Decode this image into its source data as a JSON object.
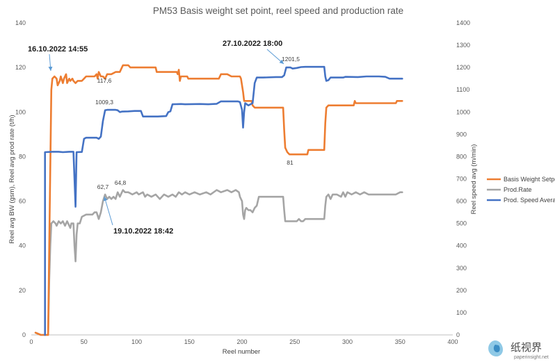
{
  "chart_data": {
    "type": "line",
    "title": "PM53 Basis weight set point, reel speed and production rate",
    "xlabel": "Reel number",
    "ylabel_left": "Reel avg BW (gsm), Reel avg prod rate (t/h)",
    "ylabel_right": "Reel speed avg (m/min)",
    "xlim": [
      0,
      400
    ],
    "xticks": [
      0,
      50,
      100,
      150,
      200,
      250,
      300,
      350,
      400
    ],
    "ylim_left": [
      0,
      140
    ],
    "yticks_left": [
      0,
      20,
      40,
      60,
      80,
      100,
      120,
      140
    ],
    "ylim_right": [
      0,
      1400
    ],
    "yticks_right": [
      0,
      100,
      200,
      300,
      400,
      500,
      600,
      700,
      800,
      900,
      1000,
      1100,
      1200,
      1300,
      1400
    ],
    "grid": false,
    "legend_position": "right",
    "series": [
      {
        "name": "Basis Weight Setpoint",
        "color": "#ED7D31",
        "axis": "left",
        "points": [
          [
            4,
            1
          ],
          [
            9,
            0
          ],
          [
            14,
            0
          ],
          [
            16,
            0
          ],
          [
            17,
            40
          ],
          [
            18,
            75
          ],
          [
            19,
            110
          ],
          [
            20,
            115
          ],
          [
            22,
            116
          ],
          [
            24,
            115
          ],
          [
            25,
            112
          ],
          [
            27,
            114
          ],
          [
            28,
            116
          ],
          [
            30,
            113
          ],
          [
            31,
            115
          ],
          [
            33,
            117
          ],
          [
            34,
            113
          ],
          [
            36,
            115
          ],
          [
            37,
            114
          ],
          [
            39,
            115
          ],
          [
            40,
            114
          ],
          [
            42,
            113
          ],
          [
            44,
            114
          ],
          [
            46,
            114
          ],
          [
            48,
            114
          ],
          [
            50,
            115
          ],
          [
            52,
            116
          ],
          [
            56,
            116
          ],
          [
            60,
            116
          ],
          [
            62,
            117
          ],
          [
            63,
            115
          ],
          [
            64,
            118
          ],
          [
            66,
            116
          ],
          [
            68,
            116
          ],
          [
            70,
            115
          ],
          [
            72,
            117
          ],
          [
            76,
            117
          ],
          [
            80,
            118
          ],
          [
            84,
            118
          ],
          [
            86,
            120
          ],
          [
            87,
            121
          ],
          [
            92,
            121
          ],
          [
            94,
            120
          ],
          [
            100,
            120
          ],
          [
            110,
            120
          ],
          [
            118,
            120
          ],
          [
            119,
            118
          ],
          [
            132,
            118
          ],
          [
            138,
            118
          ],
          [
            139,
            117
          ],
          [
            140,
            119
          ],
          [
            141,
            114
          ],
          [
            142,
            116
          ],
          [
            148,
            116
          ],
          [
            149,
            115
          ],
          [
            160,
            115
          ],
          [
            178,
            115
          ],
          [
            180,
            117
          ],
          [
            186,
            117
          ],
          [
            190,
            116
          ],
          [
            198,
            116
          ],
          [
            199,
            115
          ],
          [
            200,
            112
          ],
          [
            201,
            109
          ],
          [
            202,
            105
          ],
          [
            206,
            105
          ],
          [
            209,
            105
          ],
          [
            210,
            103
          ],
          [
            212,
            102
          ],
          [
            214,
            102
          ],
          [
            230,
            102
          ],
          [
            239,
            102
          ],
          [
            240,
            92
          ],
          [
            241,
            84
          ],
          [
            243,
            82
          ],
          [
            245,
            81
          ],
          [
            262,
            81
          ],
          [
            263,
            83
          ],
          [
            278,
            83
          ],
          [
            279,
            95
          ],
          [
            280,
            102
          ],
          [
            282,
            103
          ],
          [
            296,
            103
          ],
          [
            298,
            103
          ],
          [
            300,
            103
          ],
          [
            306,
            103
          ],
          [
            307,
            105
          ],
          [
            308,
            104
          ],
          [
            340,
            104
          ],
          [
            346,
            104
          ],
          [
            347,
            105
          ],
          [
            352,
            105
          ]
        ]
      },
      {
        "name": "Prod.Rate",
        "color": "#A5A5A5",
        "axis": "left",
        "points": [
          [
            4,
            1
          ],
          [
            9,
            0
          ],
          [
            14,
            0
          ],
          [
            16,
            0
          ],
          [
            17,
            25
          ],
          [
            18,
            40
          ],
          [
            19,
            50
          ],
          [
            21,
            51
          ],
          [
            23,
            50
          ],
          [
            24,
            49
          ],
          [
            26,
            51
          ],
          [
            28,
            50
          ],
          [
            30,
            51
          ],
          [
            32,
            49
          ],
          [
            34,
            51
          ],
          [
            35,
            50
          ],
          [
            37,
            48
          ],
          [
            38,
            50
          ],
          [
            40,
            50
          ],
          [
            41,
            40
          ],
          [
            42,
            33
          ],
          [
            43,
            45
          ],
          [
            44,
            50
          ],
          [
            46,
            50
          ],
          [
            48,
            53
          ],
          [
            52,
            54
          ],
          [
            58,
            54
          ],
          [
            60,
            55
          ],
          [
            62,
            55
          ],
          [
            64,
            52
          ],
          [
            66,
            55
          ],
          [
            68,
            60
          ],
          [
            70,
            63
          ],
          [
            72,
            61
          ],
          [
            74,
            62
          ],
          [
            76,
            61
          ],
          [
            78,
            62
          ],
          [
            80,
            61
          ],
          [
            82,
            64
          ],
          [
            84,
            62
          ],
          [
            86,
            64
          ],
          [
            87,
            65
          ],
          [
            89,
            64
          ],
          [
            92,
            64
          ],
          [
            96,
            63
          ],
          [
            100,
            64
          ],
          [
            102,
            63
          ],
          [
            106,
            64
          ],
          [
            108,
            62
          ],
          [
            110,
            63
          ],
          [
            114,
            62
          ],
          [
            118,
            63
          ],
          [
            122,
            61
          ],
          [
            126,
            63
          ],
          [
            130,
            62
          ],
          [
            134,
            63
          ],
          [
            137,
            62
          ],
          [
            140,
            64
          ],
          [
            143,
            63
          ],
          [
            146,
            64
          ],
          [
            150,
            63
          ],
          [
            155,
            64
          ],
          [
            160,
            63
          ],
          [
            166,
            64
          ],
          [
            170,
            63
          ],
          [
            176,
            65
          ],
          [
            180,
            64
          ],
          [
            186,
            65
          ],
          [
            190,
            64
          ],
          [
            194,
            65
          ],
          [
            197,
            64
          ],
          [
            198,
            62
          ],
          [
            200,
            60
          ],
          [
            201,
            54
          ],
          [
            202,
            52
          ],
          [
            203,
            56
          ],
          [
            204,
            57
          ],
          [
            206,
            56
          ],
          [
            208,
            56
          ],
          [
            210,
            55
          ],
          [
            212,
            57
          ],
          [
            214,
            58
          ],
          [
            216,
            62
          ],
          [
            220,
            62
          ],
          [
            226,
            62
          ],
          [
            232,
            62
          ],
          [
            239,
            62
          ],
          [
            240,
            56
          ],
          [
            241,
            51
          ],
          [
            248,
            51
          ],
          [
            252,
            51
          ],
          [
            254,
            52
          ],
          [
            256,
            51
          ],
          [
            258,
            51
          ],
          [
            260,
            52
          ],
          [
            270,
            52
          ],
          [
            278,
            52
          ],
          [
            279,
            58
          ],
          [
            280,
            62
          ],
          [
            282,
            63
          ],
          [
            284,
            61
          ],
          [
            286,
            63
          ],
          [
            290,
            63
          ],
          [
            294,
            62
          ],
          [
            296,
            64
          ],
          [
            298,
            62
          ],
          [
            300,
            64
          ],
          [
            304,
            63
          ],
          [
            308,
            64
          ],
          [
            312,
            63
          ],
          [
            316,
            64
          ],
          [
            320,
            63
          ],
          [
            330,
            63
          ],
          [
            340,
            63
          ],
          [
            346,
            63
          ],
          [
            350,
            64
          ],
          [
            352,
            64
          ]
        ]
      },
      {
        "name": "Prod. Speed Average",
        "color": "#4472C4",
        "axis": "right",
        "points": [
          [
            13,
            0
          ],
          [
            13,
            820
          ],
          [
            20,
            822
          ],
          [
            26,
            822
          ],
          [
            30,
            820
          ],
          [
            36,
            822
          ],
          [
            40,
            822
          ],
          [
            41,
            700
          ],
          [
            42,
            575
          ],
          [
            43,
            820
          ],
          [
            48,
            821
          ],
          [
            50,
            880
          ],
          [
            52,
            885
          ],
          [
            62,
            885
          ],
          [
            64,
            880
          ],
          [
            66,
            890
          ],
          [
            68,
            960
          ],
          [
            70,
            1008
          ],
          [
            72,
            1010
          ],
          [
            80,
            1010
          ],
          [
            82,
            1008
          ],
          [
            84,
            1000
          ],
          [
            86,
            1002
          ],
          [
            92,
            1003
          ],
          [
            98,
            1005
          ],
          [
            104,
            1005
          ],
          [
            106,
            980
          ],
          [
            120,
            980
          ],
          [
            128,
            982
          ],
          [
            130,
            1000
          ],
          [
            132,
            1003
          ],
          [
            134,
            1035
          ],
          [
            142,
            1036
          ],
          [
            146,
            1035
          ],
          [
            160,
            1036
          ],
          [
            168,
            1035
          ],
          [
            176,
            1037
          ],
          [
            180,
            1048
          ],
          [
            196,
            1048
          ],
          [
            198,
            1045
          ],
          [
            200,
            1010
          ],
          [
            201,
            930
          ],
          [
            202,
            1000
          ],
          [
            203,
            1040
          ],
          [
            206,
            1030
          ],
          [
            208,
            1035
          ],
          [
            210,
            1040
          ],
          [
            212,
            1130
          ],
          [
            214,
            1155
          ],
          [
            220,
            1155
          ],
          [
            232,
            1157
          ],
          [
            238,
            1157
          ],
          [
            240,
            1165
          ],
          [
            242,
            1200
          ],
          [
            246,
            1200
          ],
          [
            248,
            1195
          ],
          [
            252,
            1198
          ],
          [
            256,
            1202
          ],
          [
            260,
            1203
          ],
          [
            278,
            1203
          ],
          [
            279,
            1160
          ],
          [
            280,
            1140
          ],
          [
            282,
            1143
          ],
          [
            284,
            1155
          ],
          [
            296,
            1155
          ],
          [
            298,
            1158
          ],
          [
            310,
            1157
          ],
          [
            318,
            1160
          ],
          [
            330,
            1160
          ],
          [
            336,
            1158
          ],
          [
            340,
            1150
          ],
          [
            352,
            1150
          ]
        ]
      }
    ],
    "data_labels": [
      {
        "text": "117,6",
        "series": "Basis Weight Setpoint"
      },
      {
        "text": "81",
        "series": "Basis Weight Setpoint"
      },
      {
        "text": "62,7",
        "series": "Prod.Rate"
      },
      {
        "text": "64,8",
        "series": "Prod.Rate"
      },
      {
        "text": "1009,3",
        "series": "Prod. Speed Average"
      },
      {
        "text": "1201,5",
        "series": "Prod. Speed Average"
      }
    ],
    "annotations": [
      {
        "text": "16.10.2022 14:55"
      },
      {
        "text": "19.10.2022 18:42"
      },
      {
        "text": "27.10.2022 18:00"
      }
    ]
  },
  "watermark": {
    "brand_text": "纸视界",
    "site_text": "paperinsight.net"
  }
}
